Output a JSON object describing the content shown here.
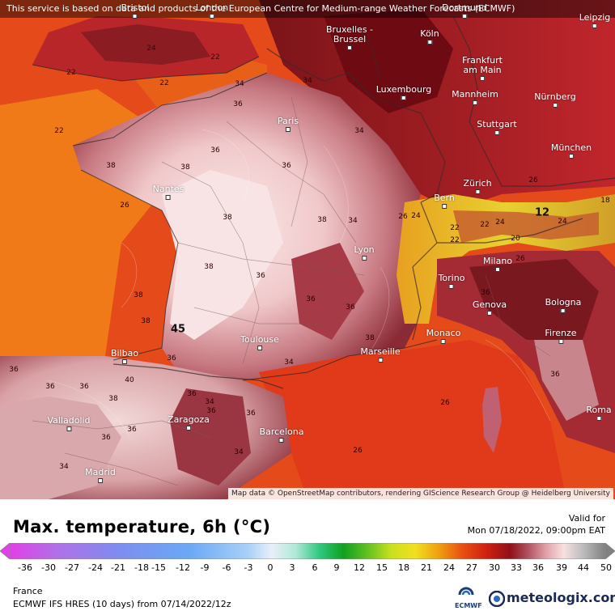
{
  "banner": "This service is based on data and products of the European Centre for Medium-range Weather Forecasts (ECMWF)",
  "attribution": "Map data © OpenStreetMap contributors, rendering GIScience Research Group @ Heidelberg University",
  "title": "Max. temperature, 6h (°C)",
  "valid_label": "Valid for",
  "valid_time": "Mon 07/18/2022, 09:00pm EAT",
  "region": "France",
  "model": "ECMWF IFS HRES (10 days) from 07/14/2022/12z",
  "ecmwf_label": "ECMWF",
  "brand": "meteologix.com",
  "colors": {
    "sea": "#e0401c",
    "ocean": "#f07a18",
    "hot": "#b8202c",
    "veryhot": "#6e0a12",
    "extreme": "#f5dada",
    "alps": "#e8c020"
  },
  "scale_ticks": [
    "-36",
    "-30",
    "-27",
    "-24",
    "-21",
    "-18",
    "-15",
    "-12",
    "-9",
    "-6",
    "-3",
    "0",
    "3",
    "6",
    "9",
    "12",
    "15",
    "18",
    "21",
    "24",
    "27",
    "30",
    "33",
    "36",
    "39",
    "44",
    "50"
  ],
  "cities": [
    {
      "name": "Bristol"
    },
    {
      "name": "London"
    },
    {
      "name": "Dortmund"
    },
    {
      "name": "Leipzig"
    },
    {
      "name": "Bruxelles -\nBrussel"
    },
    {
      "name": "Köln"
    },
    {
      "name": "Frankfurt\nam Main"
    },
    {
      "name": "Luxembourg"
    },
    {
      "name": "Mannheim"
    },
    {
      "name": "Nürnberg"
    },
    {
      "name": "Paris"
    },
    {
      "name": "Stuttgart"
    },
    {
      "name": "München"
    },
    {
      "name": "Nantes"
    },
    {
      "name": "Zürich"
    },
    {
      "name": "Bern"
    },
    {
      "name": "Lyon"
    },
    {
      "name": "Milano"
    },
    {
      "name": "Torino"
    },
    {
      "name": "Genova"
    },
    {
      "name": "Bologna"
    },
    {
      "name": "Monaco"
    },
    {
      "name": "Toulouse"
    },
    {
      "name": "Marseille"
    },
    {
      "name": "Firenze"
    },
    {
      "name": "Bilbao"
    },
    {
      "name": "Valladolid"
    },
    {
      "name": "Zaragoza"
    },
    {
      "name": "Barcelona"
    },
    {
      "name": "Roma"
    },
    {
      "name": "Madrid"
    }
  ],
  "isotherms": [
    "22",
    "24",
    "22",
    "22",
    "22",
    "36",
    "34",
    "34",
    "38",
    "36",
    "38",
    "36",
    "38",
    "38",
    "34",
    "34",
    "38",
    "36",
    "36",
    "36",
    "22",
    "24",
    "20",
    "24",
    "26",
    "12",
    "18",
    "26",
    "22",
    "38",
    "38",
    "45",
    "36",
    "34",
    "38",
    "36",
    "36",
    "36",
    "40",
    "36",
    "38",
    "36",
    "34",
    "36",
    "36",
    "34",
    "36",
    "26",
    "34",
    "26",
    "24",
    "26",
    "22",
    "26",
    "36",
    "36"
  ]
}
